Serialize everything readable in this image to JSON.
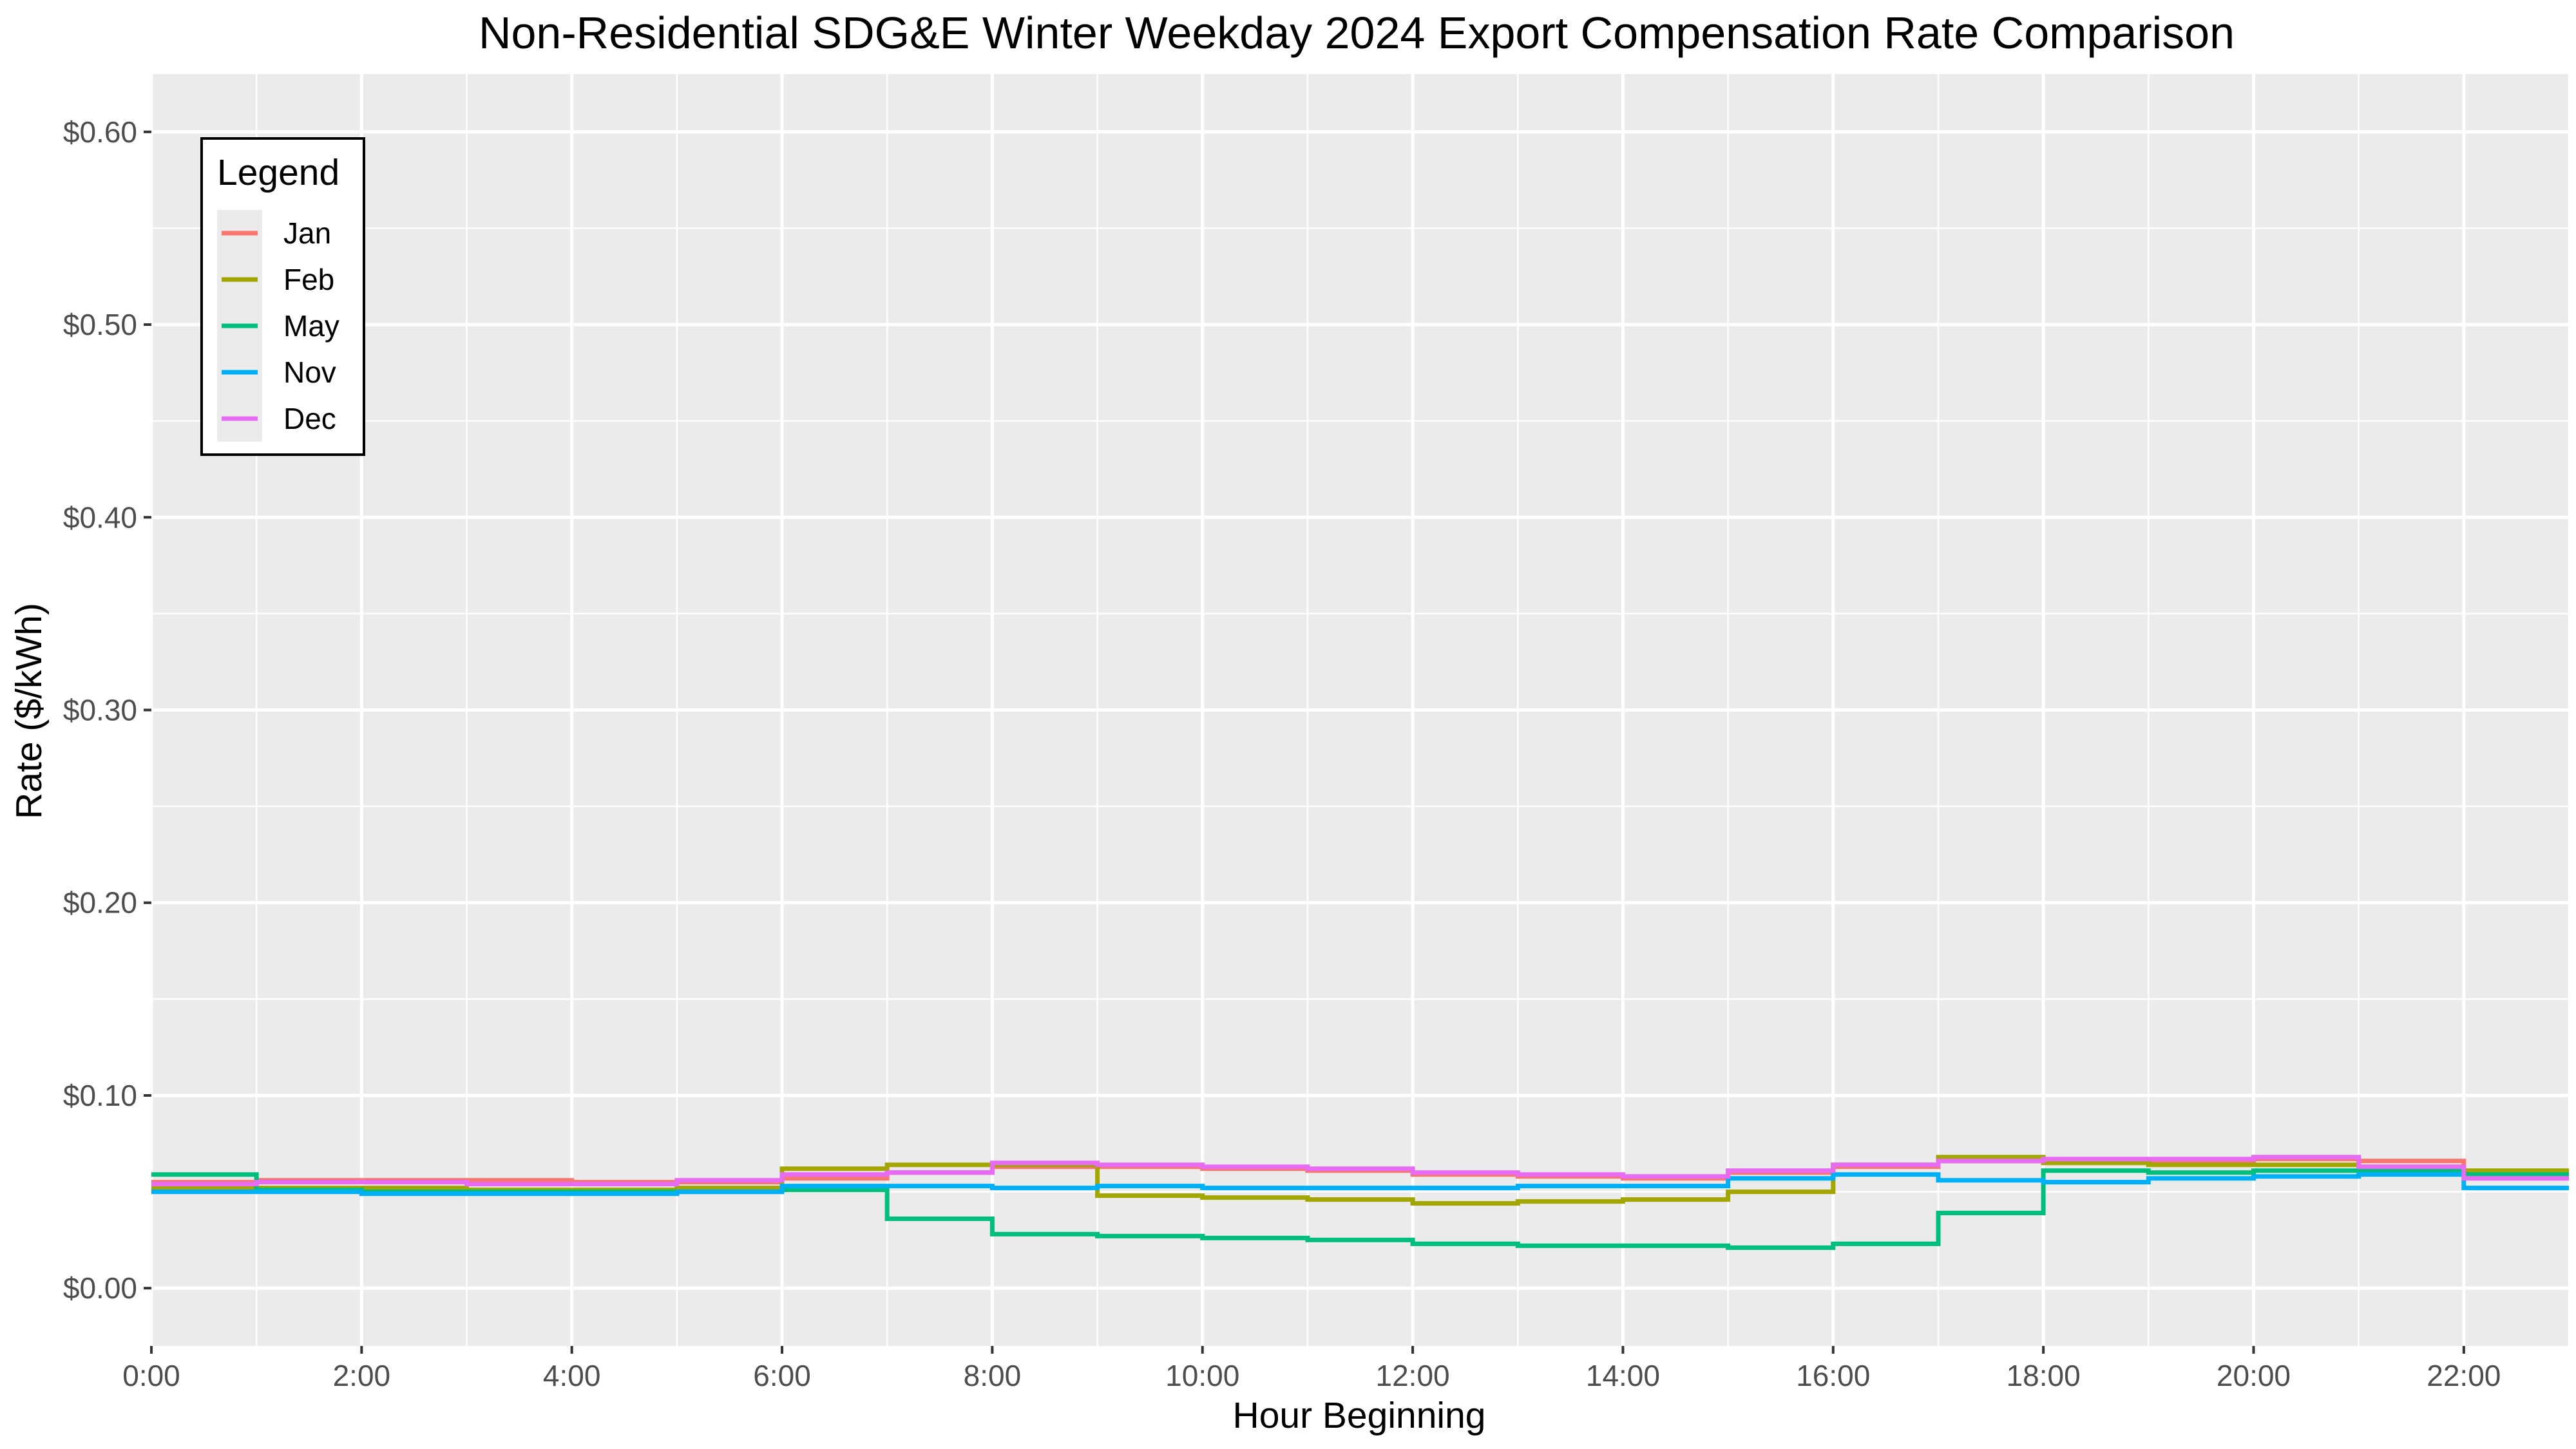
{
  "chart_data": {
    "type": "line",
    "step": true,
    "title": "Non-Residential SDG&E Winter Weekday 2024 Export Compensation Rate Comparison",
    "xlabel": "Hour Beginning",
    "ylabel": "Rate ($/kWh)",
    "xlim": [
      0,
      23
    ],
    "ylim": [
      -0.03,
      0.63
    ],
    "grid": true,
    "x_ticks": [
      0,
      2,
      4,
      6,
      8,
      10,
      12,
      14,
      16,
      18,
      20,
      22
    ],
    "x_tick_labels": [
      "0:00",
      "2:00",
      "4:00",
      "6:00",
      "8:00",
      "10:00",
      "12:00",
      "14:00",
      "16:00",
      "18:00",
      "20:00",
      "22:00"
    ],
    "y_ticks": [
      0,
      0.1,
      0.2,
      0.3,
      0.4,
      0.5,
      0.6
    ],
    "y_tick_labels": [
      "$0.00",
      "$0.10",
      "$0.20",
      "$0.30",
      "$0.40",
      "$0.50",
      "$0.60"
    ],
    "legend": {
      "title": "Legend",
      "position": "top-left"
    },
    "x": [
      0,
      1,
      2,
      3,
      4,
      5,
      6,
      7,
      8,
      9,
      10,
      11,
      12,
      13,
      14,
      15,
      16,
      17,
      18,
      19,
      20,
      21,
      22,
      23
    ],
    "series": [
      {
        "name": "Jan",
        "color": "#F8766D",
        "values": [
          0.055,
          0.056,
          0.056,
          0.056,
          0.055,
          0.055,
          0.057,
          0.06,
          0.063,
          0.063,
          0.062,
          0.061,
          0.059,
          0.058,
          0.057,
          0.06,
          0.063,
          0.066,
          0.066,
          0.066,
          0.067,
          0.066,
          0.06,
          0.06
        ]
      },
      {
        "name": "Feb",
        "color": "#A3A500",
        "values": [
          0.052,
          0.052,
          0.052,
          0.051,
          0.051,
          0.052,
          0.062,
          0.064,
          0.064,
          0.048,
          0.047,
          0.046,
          0.044,
          0.045,
          0.046,
          0.05,
          0.064,
          0.068,
          0.065,
          0.064,
          0.064,
          0.063,
          0.061,
          0.061
        ]
      },
      {
        "name": "May",
        "color": "#00BF7D",
        "values": [
          0.059,
          0.051,
          0.05,
          0.05,
          0.05,
          0.05,
          0.051,
          0.036,
          0.028,
          0.027,
          0.026,
          0.025,
          0.023,
          0.022,
          0.022,
          0.021,
          0.023,
          0.039,
          0.061,
          0.06,
          0.061,
          0.061,
          0.059,
          0.059
        ]
      },
      {
        "name": "Nov",
        "color": "#00B0F6",
        "values": [
          0.05,
          0.05,
          0.049,
          0.049,
          0.049,
          0.05,
          0.053,
          0.053,
          0.052,
          0.053,
          0.052,
          0.052,
          0.052,
          0.053,
          0.053,
          0.057,
          0.059,
          0.056,
          0.055,
          0.057,
          0.058,
          0.059,
          0.052,
          0.052
        ]
      },
      {
        "name": "Dec",
        "color": "#E76BF3",
        "values": [
          0.054,
          0.055,
          0.055,
          0.054,
          0.054,
          0.056,
          0.059,
          0.06,
          0.065,
          0.064,
          0.063,
          0.062,
          0.06,
          0.059,
          0.058,
          0.061,
          0.064,
          0.066,
          0.067,
          0.067,
          0.068,
          0.063,
          0.057,
          0.057
        ]
      }
    ]
  }
}
